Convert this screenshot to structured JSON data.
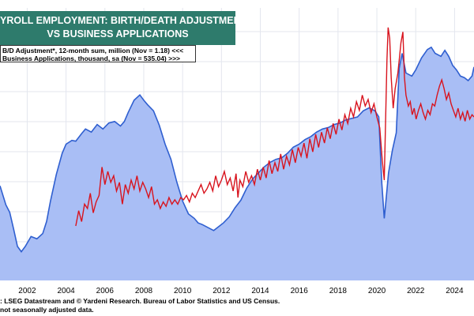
{
  "chart_data": {
    "type": "line",
    "title_line1": "YROLL EMPLOYMENT: BIRTH/DEATH ADJUSTMENT",
    "title_line2": "VS BUSINESS APPLICATIONS",
    "legend": [
      "B/D Adjustment*, 12-month sum, million (Nov = 1.18) <<<",
      "Business Applications, thousand, sa (Nov = 535.04) >>>"
    ],
    "x_ticks": [
      "2002",
      "2004",
      "2006",
      "2008",
      "2010",
      "2012",
      "2014",
      "2016",
      "2018",
      "2020",
      "2022",
      "2024"
    ],
    "x_range": [
      2000.6,
      2025.0
    ],
    "series": [
      {
        "name": "Business Applications, thousand, sa",
        "axis": "right",
        "color": "#2f5fd0",
        "fill": "#a9bef5",
        "range": [
          200,
          560
        ],
        "points": [
          [
            2000.6,
            325
          ],
          [
            2000.9,
            300
          ],
          [
            2001.1,
            290
          ],
          [
            2001.3,
            268
          ],
          [
            2001.5,
            245
          ],
          [
            2001.7,
            238
          ],
          [
            2001.9,
            245
          ],
          [
            2002.2,
            258
          ],
          [
            2002.5,
            255
          ],
          [
            2002.8,
            262
          ],
          [
            2003.0,
            278
          ],
          [
            2003.2,
            305
          ],
          [
            2003.5,
            340
          ],
          [
            2003.8,
            368
          ],
          [
            2004.0,
            380
          ],
          [
            2004.3,
            385
          ],
          [
            2004.5,
            384
          ],
          [
            2004.8,
            394
          ],
          [
            2005.0,
            400
          ],
          [
            2005.3,
            396
          ],
          [
            2005.6,
            406
          ],
          [
            2005.9,
            400
          ],
          [
            2006.2,
            408
          ],
          [
            2006.5,
            410
          ],
          [
            2006.8,
            404
          ],
          [
            2007.0,
            410
          ],
          [
            2007.2,
            422
          ],
          [
            2007.5,
            438
          ],
          [
            2007.8,
            445
          ],
          [
            2008.0,
            438
          ],
          [
            2008.2,
            432
          ],
          [
            2008.5,
            424
          ],
          [
            2008.8,
            405
          ],
          [
            2009.1,
            380
          ],
          [
            2009.4,
            360
          ],
          [
            2009.7,
            330
          ],
          [
            2010.0,
            305
          ],
          [
            2010.3,
            288
          ],
          [
            2010.6,
            282
          ],
          [
            2010.8,
            276
          ],
          [
            2011.0,
            274
          ],
          [
            2011.3,
            270
          ],
          [
            2011.6,
            266
          ],
          [
            2011.9,
            272
          ],
          [
            2012.1,
            276
          ],
          [
            2012.4,
            284
          ],
          [
            2012.7,
            296
          ],
          [
            2013.0,
            306
          ],
          [
            2013.3,
            322
          ],
          [
            2013.6,
            334
          ],
          [
            2013.9,
            342
          ],
          [
            2014.2,
            350
          ],
          [
            2014.5,
            356
          ],
          [
            2014.8,
            360
          ],
          [
            2015.1,
            362
          ],
          [
            2015.4,
            368
          ],
          [
            2015.7,
            376
          ],
          [
            2016.0,
            380
          ],
          [
            2016.3,
            386
          ],
          [
            2016.6,
            390
          ],
          [
            2016.9,
            396
          ],
          [
            2017.2,
            400
          ],
          [
            2017.5,
            402
          ],
          [
            2017.8,
            406
          ],
          [
            2018.1,
            408
          ],
          [
            2018.4,
            412
          ],
          [
            2018.7,
            414
          ],
          [
            2019.0,
            416
          ],
          [
            2019.3,
            424
          ],
          [
            2019.6,
            428
          ],
          [
            2019.9,
            424
          ],
          [
            2020.1,
            416
          ],
          [
            2020.25,
            330
          ],
          [
            2020.38,
            282
          ],
          [
            2020.45,
            300
          ],
          [
            2020.6,
            342
          ],
          [
            2020.8,
            372
          ],
          [
            2021.0,
            395
          ],
          [
            2021.15,
            480
          ],
          [
            2021.3,
            500
          ],
          [
            2021.5,
            474
          ],
          [
            2021.8,
            470
          ],
          [
            2022.0,
            478
          ],
          [
            2022.3,
            494
          ],
          [
            2022.6,
            505
          ],
          [
            2022.8,
            508
          ],
          [
            2023.0,
            500
          ],
          [
            2023.3,
            496
          ],
          [
            2023.5,
            504
          ],
          [
            2023.7,
            496
          ],
          [
            2023.9,
            484
          ],
          [
            2024.1,
            478
          ],
          [
            2024.3,
            470
          ],
          [
            2024.5,
            468
          ],
          [
            2024.7,
            464
          ],
          [
            2024.9,
            470
          ],
          [
            2025.0,
            482
          ]
        ]
      },
      {
        "name": "B/D Adjustment*, 12-month sum, million",
        "axis": "left",
        "color": "#d8141e",
        "range": [
          -0.3,
          2.2
        ],
        "points": [
          [
            2004.5,
            0.2
          ],
          [
            2004.65,
            0.34
          ],
          [
            2004.8,
            0.24
          ],
          [
            2004.95,
            0.4
          ],
          [
            2005.1,
            0.36
          ],
          [
            2005.25,
            0.5
          ],
          [
            2005.4,
            0.32
          ],
          [
            2005.55,
            0.42
          ],
          [
            2005.7,
            0.48
          ],
          [
            2005.85,
            0.74
          ],
          [
            2006.0,
            0.58
          ],
          [
            2006.15,
            0.7
          ],
          [
            2006.3,
            0.6
          ],
          [
            2006.45,
            0.66
          ],
          [
            2006.6,
            0.52
          ],
          [
            2006.75,
            0.6
          ],
          [
            2006.9,
            0.4
          ],
          [
            2007.05,
            0.58
          ],
          [
            2007.2,
            0.5
          ],
          [
            2007.35,
            0.62
          ],
          [
            2007.5,
            0.54
          ],
          [
            2007.65,
            0.66
          ],
          [
            2007.8,
            0.52
          ],
          [
            2007.95,
            0.6
          ],
          [
            2008.1,
            0.54
          ],
          [
            2008.25,
            0.46
          ],
          [
            2008.4,
            0.56
          ],
          [
            2008.55,
            0.4
          ],
          [
            2008.7,
            0.44
          ],
          [
            2008.85,
            0.36
          ],
          [
            2009.0,
            0.42
          ],
          [
            2009.15,
            0.38
          ],
          [
            2009.3,
            0.46
          ],
          [
            2009.45,
            0.4
          ],
          [
            2009.6,
            0.44
          ],
          [
            2009.75,
            0.4
          ],
          [
            2009.9,
            0.46
          ],
          [
            2010.05,
            0.44
          ],
          [
            2010.2,
            0.48
          ],
          [
            2010.35,
            0.42
          ],
          [
            2010.5,
            0.5
          ],
          [
            2010.65,
            0.46
          ],
          [
            2010.8,
            0.52
          ],
          [
            2010.95,
            0.58
          ],
          [
            2011.1,
            0.5
          ],
          [
            2011.25,
            0.54
          ],
          [
            2011.4,
            0.6
          ],
          [
            2011.55,
            0.52
          ],
          [
            2011.7,
            0.66
          ],
          [
            2011.85,
            0.56
          ],
          [
            2012.0,
            0.62
          ],
          [
            2012.15,
            0.7
          ],
          [
            2012.3,
            0.58
          ],
          [
            2012.45,
            0.64
          ],
          [
            2012.6,
            0.52
          ],
          [
            2012.75,
            0.68
          ],
          [
            2012.85,
            0.46
          ],
          [
            2012.95,
            0.62
          ],
          [
            2013.1,
            0.56
          ],
          [
            2013.25,
            0.7
          ],
          [
            2013.4,
            0.6
          ],
          [
            2013.55,
            0.66
          ],
          [
            2013.7,
            0.58
          ],
          [
            2013.85,
            0.72
          ],
          [
            2014.0,
            0.62
          ],
          [
            2014.15,
            0.74
          ],
          [
            2014.3,
            0.64
          ],
          [
            2014.45,
            0.8
          ],
          [
            2014.6,
            0.68
          ],
          [
            2014.75,
            0.78
          ],
          [
            2014.9,
            0.7
          ],
          [
            2015.05,
            0.86
          ],
          [
            2015.2,
            0.72
          ],
          [
            2015.35,
            0.84
          ],
          [
            2015.5,
            0.76
          ],
          [
            2015.65,
            0.9
          ],
          [
            2015.8,
            0.78
          ],
          [
            2015.95,
            0.92
          ],
          [
            2016.1,
            0.84
          ],
          [
            2016.25,
            0.96
          ],
          [
            2016.4,
            0.82
          ],
          [
            2016.55,
            1.0
          ],
          [
            2016.7,
            0.88
          ],
          [
            2016.85,
            1.04
          ],
          [
            2017.0,
            0.92
          ],
          [
            2017.15,
            1.06
          ],
          [
            2017.3,
            0.96
          ],
          [
            2017.45,
            1.1
          ],
          [
            2017.6,
            1.0
          ],
          [
            2017.75,
            1.14
          ],
          [
            2017.9,
            1.04
          ],
          [
            2018.05,
            1.18
          ],
          [
            2018.2,
            1.08
          ],
          [
            2018.35,
            1.22
          ],
          [
            2018.5,
            1.14
          ],
          [
            2018.65,
            1.28
          ],
          [
            2018.8,
            1.2
          ],
          [
            2018.95,
            1.34
          ],
          [
            2019.1,
            1.26
          ],
          [
            2019.25,
            1.4
          ],
          [
            2019.4,
            1.3
          ],
          [
            2019.55,
            1.36
          ],
          [
            2019.7,
            1.24
          ],
          [
            2019.85,
            1.32
          ],
          [
            2020.0,
            1.2
          ],
          [
            2020.15,
            1.1
          ],
          [
            2020.28,
            0.8
          ],
          [
            2020.38,
            0.62
          ],
          [
            2020.52,
            1.72
          ],
          [
            2020.58,
            2.02
          ],
          [
            2020.66,
            1.92
          ],
          [
            2020.74,
            1.56
          ],
          [
            2020.84,
            1.28
          ],
          [
            2020.94,
            1.46
          ],
          [
            2021.08,
            1.6
          ],
          [
            2021.16,
            1.74
          ],
          [
            2021.24,
            1.88
          ],
          [
            2021.34,
            1.98
          ],
          [
            2021.42,
            1.56
          ],
          [
            2021.5,
            1.4
          ],
          [
            2021.62,
            1.3
          ],
          [
            2021.72,
            1.34
          ],
          [
            2021.82,
            1.22
          ],
          [
            2021.92,
            1.28
          ],
          [
            2022.02,
            1.18
          ],
          [
            2022.14,
            1.26
          ],
          [
            2022.26,
            1.32
          ],
          [
            2022.38,
            1.24
          ],
          [
            2022.5,
            1.18
          ],
          [
            2022.62,
            1.26
          ],
          [
            2022.74,
            1.22
          ],
          [
            2022.86,
            1.32
          ],
          [
            2022.98,
            1.3
          ],
          [
            2023.1,
            1.4
          ],
          [
            2023.22,
            1.48
          ],
          [
            2023.34,
            1.54
          ],
          [
            2023.46,
            1.46
          ],
          [
            2023.58,
            1.36
          ],
          [
            2023.7,
            1.42
          ],
          [
            2023.82,
            1.32
          ],
          [
            2023.94,
            1.26
          ],
          [
            2024.06,
            1.2
          ],
          [
            2024.18,
            1.28
          ],
          [
            2024.3,
            1.18
          ],
          [
            2024.42,
            1.24
          ],
          [
            2024.54,
            1.16
          ],
          [
            2024.66,
            1.26
          ],
          [
            2024.78,
            1.18
          ],
          [
            2024.9,
            1.22
          ],
          [
            2025.0,
            1.2
          ]
        ]
      }
    ],
    "grid": true
  },
  "footer": {
    "line1": ": LSEG Datastream and © Yardeni Research. Bureau of Labor Statistics and US Census.",
    "line2": "not seasonally adjusted data."
  },
  "colors": {
    "title_bg": "#2e7b6c",
    "area_fill": "#a9bef5",
    "blue_line": "#2f5fd0",
    "red_line": "#d8141e",
    "grid": "#e3e6ee"
  }
}
